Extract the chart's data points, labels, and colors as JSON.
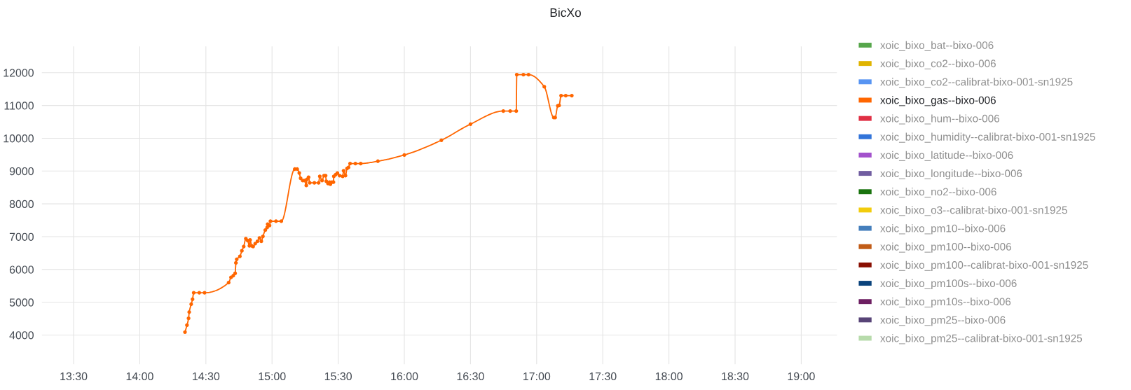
{
  "chart_data": {
    "type": "line",
    "title": "BicXo",
    "xlim": [
      13.26,
      19.27
    ],
    "xticks": [
      {
        "value": 13.5,
        "label": "13:30"
      },
      {
        "value": 14.0,
        "label": "14:00"
      },
      {
        "value": 14.5,
        "label": "14:30"
      },
      {
        "value": 15.0,
        "label": "15:00"
      },
      {
        "value": 15.5,
        "label": "15:30"
      },
      {
        "value": 16.0,
        "label": "16:00"
      },
      {
        "value": 16.5,
        "label": "16:30"
      },
      {
        "value": 17.0,
        "label": "17:00"
      },
      {
        "value": 17.5,
        "label": "17:30"
      },
      {
        "value": 18.0,
        "label": "18:00"
      },
      {
        "value": 18.5,
        "label": "18:30"
      },
      {
        "value": 19.0,
        "label": "19:00"
      }
    ],
    "ylim": [
      3110,
      12800
    ],
    "yticks": [
      4000,
      5000,
      6000,
      7000,
      8000,
      9000,
      10000,
      11000,
      12000
    ],
    "grid": true,
    "legend": "right",
    "marker": "circle",
    "line_style": "solid",
    "series": [
      {
        "name": "xoic_bixo_bat--bixo-006",
        "color": "#56a64b"
      },
      {
        "name": "xoic_bixo_co2--bixo-006",
        "color": "#e0b400"
      },
      {
        "name": "xoic_bixo_co2--calibrat-bixo-001-sn1925",
        "color": "#5794f2"
      },
      {
        "name": "xoic_bixo_gas--bixo-006",
        "color": "#ff6600",
        "x": [
          14.342,
          14.357,
          14.369,
          14.374,
          14.389,
          14.399,
          14.408,
          14.45,
          14.49,
          14.672,
          14.69,
          14.707,
          14.721,
          14.727,
          14.733,
          14.757,
          14.772,
          14.786,
          14.802,
          14.816,
          14.829,
          14.834,
          14.846,
          14.857,
          14.873,
          14.89,
          14.905,
          14.919,
          14.931,
          14.949,
          14.963,
          14.967,
          14.981,
          14.988,
          15.03,
          15.07,
          15.172,
          15.19,
          15.206,
          15.216,
          15.232,
          15.246,
          15.259,
          15.264,
          15.276,
          15.285,
          15.32,
          15.352,
          15.361,
          15.378,
          15.393,
          15.405,
          15.41,
          15.423,
          15.435,
          15.441,
          15.453,
          15.464,
          15.467,
          15.481,
          15.494,
          15.511,
          15.534,
          15.541,
          15.555,
          15.567,
          15.578,
          15.59,
          15.63,
          15.67,
          15.8,
          16.0,
          16.28,
          16.5,
          16.748,
          16.8,
          16.846,
          16.85,
          16.9,
          16.939,
          17.058,
          17.13,
          17.14,
          17.16,
          17.17,
          17.185,
          17.22,
          17.266
        ],
        "values": [
          4090,
          4300,
          4510,
          4700,
          4940,
          5090,
          5290,
          5290,
          5290,
          5600,
          5760,
          5810,
          5880,
          6200,
          6310,
          6400,
          6570,
          6700,
          6940,
          6880,
          6720,
          6900,
          6720,
          6700,
          6790,
          6860,
          6960,
          6860,
          7010,
          7200,
          7280,
          7380,
          7340,
          7470,
          7470,
          7470,
          9060,
          9060,
          8940,
          8780,
          8710,
          8710,
          8560,
          8750,
          8810,
          8640,
          8640,
          8640,
          8840,
          8710,
          8860,
          8860,
          8690,
          8620,
          8660,
          8600,
          8660,
          8660,
          8840,
          8890,
          8940,
          8860,
          8840,
          9010,
          8860,
          9080,
          9110,
          9230,
          9230,
          9230,
          9300,
          9490,
          9940,
          10430,
          10830,
          10830,
          10830,
          11940,
          11940,
          11940,
          11570,
          10630,
          10630,
          10990,
          11000,
          11300,
          11300,
          11300
        ]
      },
      {
        "name": "xoic_bixo_hum--bixo-006",
        "color": "#e02f44"
      },
      {
        "name": "xoic_bixo_humidity--calibrat-bixo-001-sn1925",
        "color": "#3274d9"
      },
      {
        "name": "xoic_bixo_latitude--bixo-006",
        "color": "#a352cc"
      },
      {
        "name": "xoic_bixo_longitude--bixo-006",
        "color": "#705da0"
      },
      {
        "name": "xoic_bixo_no2--bixo-006",
        "color": "#19730e"
      },
      {
        "name": "xoic_bixo_o3--calibrat-bixo-001-sn1925",
        "color": "#f2cc0c"
      },
      {
        "name": "xoic_bixo_pm10--bixo-006",
        "color": "#447ebc"
      },
      {
        "name": "xoic_bixo_pm100--bixo-006",
        "color": "#c15c17"
      },
      {
        "name": "xoic_bixo_pm100--calibrat-bixo-001-sn1925",
        "color": "#890f02"
      },
      {
        "name": "xoic_bixo_pm100s--bixo-006",
        "color": "#0a437c"
      },
      {
        "name": "xoic_bixo_pm10s--bixo-006",
        "color": "#6d1f62"
      },
      {
        "name": "xoic_bixo_pm25--bixo-006",
        "color": "#584477"
      },
      {
        "name": "xoic_bixo_pm25--calibrat-bixo-001-sn1925",
        "color": "#b7dbab"
      }
    ]
  }
}
